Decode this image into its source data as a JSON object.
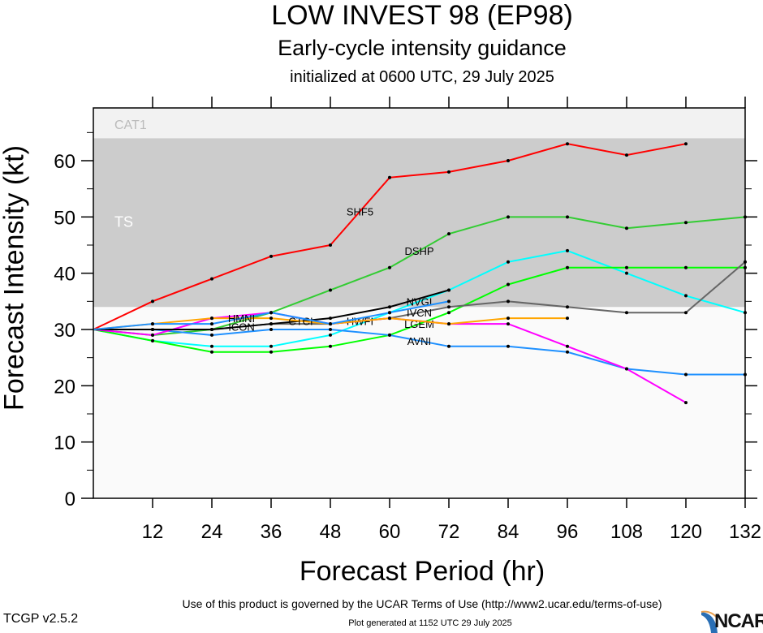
{
  "header": {
    "title": "LOW INVEST 98 (EP98)",
    "subtitle": "Early-cycle intensity guidance",
    "init": "initialized at 0600 UTC, 29 July 2025"
  },
  "footer": {
    "terms": "Use of this product is governed by the UCAR Terms of Use (http://www2.ucar.edu/terms-of-use)",
    "generated": "Plot generated at 1152 UTC   29 July 2025",
    "version": "TCGP v2.5.2",
    "logo": "NCAR"
  },
  "chart_data": {
    "type": "line",
    "title": "LOW INVEST 98 (EP98)",
    "xlabel": "Forecast Period (hr)",
    "ylabel": "Forecast Intensity (kt)",
    "xlim": [
      0,
      132
    ],
    "ylim": [
      0,
      68
    ],
    "xticks": [
      12,
      24,
      36,
      48,
      60,
      72,
      84,
      96,
      108,
      120,
      132
    ],
    "yticks": [
      0,
      10,
      20,
      30,
      40,
      50,
      60
    ],
    "bands": [
      {
        "label": "TS",
        "from": 34,
        "to": 64,
        "color": "#cccccc"
      },
      {
        "label": "CAT1",
        "from": 64,
        "to": 83,
        "color": "#f2f2f2"
      }
    ],
    "series": [
      {
        "name": "SHF5",
        "color": "#ff0000",
        "x": [
          0,
          12,
          24,
          36,
          48,
          60,
          72,
          84,
          96,
          108,
          120
        ],
        "values": [
          30,
          35,
          39,
          43,
          45,
          57,
          58,
          60,
          63,
          61,
          63
        ]
      },
      {
        "name": "DSHP",
        "color": "#33cc33",
        "x": [
          0,
          12,
          24,
          36,
          48,
          60,
          72,
          84,
          96,
          108,
          120,
          132
        ],
        "values": [
          30,
          29,
          30,
          33,
          37,
          41,
          47,
          50,
          50,
          48,
          49,
          50
        ]
      },
      {
        "name": "NVGI",
        "color": "#00ffff",
        "x": [
          0,
          12,
          24,
          36,
          48,
          60,
          72,
          84,
          96,
          108,
          120,
          132
        ],
        "values": [
          30,
          28,
          27,
          27,
          29,
          33,
          37,
          42,
          44,
          40,
          36,
          33
        ]
      },
      {
        "name": "LGEM",
        "color": "#00ff00",
        "x": [
          0,
          12,
          24,
          36,
          48,
          60,
          72,
          84,
          96,
          108,
          120,
          132
        ],
        "values": [
          30,
          28,
          26,
          26,
          27,
          29,
          33,
          38,
          41,
          41,
          41,
          41
        ]
      },
      {
        "name": "IVCN",
        "color": "#666666",
        "x": [
          0,
          12,
          24,
          36,
          48,
          60,
          72,
          84,
          96,
          108,
          120,
          132
        ],
        "values": [
          30,
          30,
          30,
          31,
          31,
          32,
          34,
          35,
          34,
          33,
          33,
          42
        ]
      },
      {
        "name": "AVNI",
        "color": "#1e90ff",
        "x": [
          0,
          12,
          24,
          36,
          48,
          60,
          72,
          84,
          96,
          108,
          120,
          132
        ],
        "values": [
          30,
          30,
          29,
          30,
          30,
          29,
          27,
          27,
          26,
          23,
          22,
          22
        ]
      },
      {
        "name": "HWFI",
        "color": "#ff00ff",
        "x": [
          0,
          12,
          24,
          36,
          48,
          60,
          72,
          84,
          96,
          108,
          120
        ],
        "values": [
          30,
          29,
          32,
          33,
          31,
          32,
          31,
          31,
          27,
          23,
          17
        ]
      },
      {
        "name": "ICON",
        "color": "#000000",
        "x": [
          0,
          12,
          24,
          36,
          48,
          60,
          72
        ],
        "values": [
          30,
          30,
          30,
          31,
          32,
          34,
          37
        ]
      },
      {
        "name": "CTCI",
        "color": "#ffa500",
        "x": [
          0,
          12,
          24,
          36,
          48,
          60,
          72,
          84,
          96
        ],
        "values": [
          30,
          31,
          32,
          32,
          31,
          32,
          31,
          32,
          32
        ]
      },
      {
        "name": "HMNI",
        "color": "#1e90ff",
        "x": [
          0,
          12,
          24,
          36,
          48,
          60,
          72
        ],
        "values": [
          30,
          31,
          31,
          33,
          31,
          33,
          35
        ]
      }
    ]
  }
}
